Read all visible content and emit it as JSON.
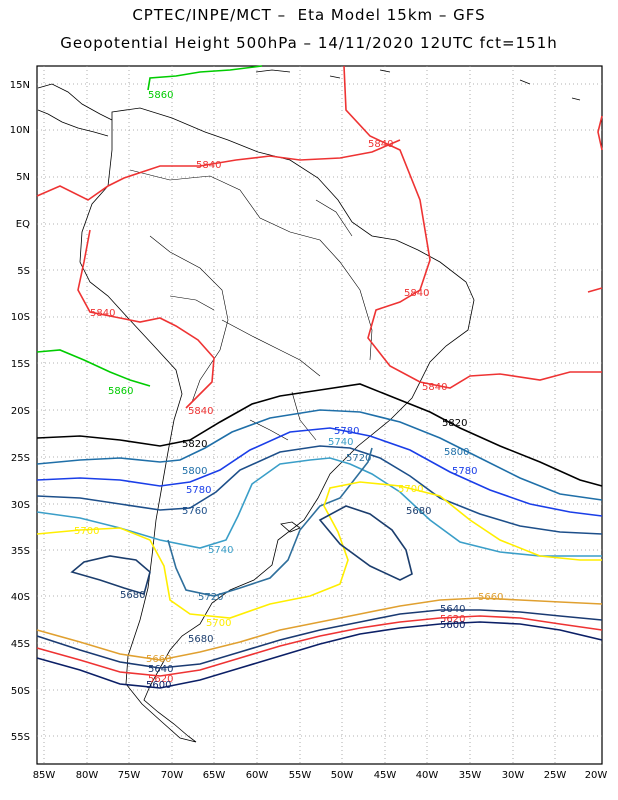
{
  "header": {
    "title_line1": "CPTEC/INPE/MCT –  Eta Model 15km – GFS",
    "title_line2": "Geopotential Height 500hPa – 14/11/2020 12UTC fct=151h"
  },
  "axes": {
    "lat_labels": [
      "15N",
      "10N",
      "5N",
      "EQ",
      "5S",
      "10S",
      "15S",
      "20S",
      "25S",
      "30S",
      "35S",
      "40S",
      "45S",
      "50S",
      "55S"
    ],
    "lon_labels": [
      "85W",
      "80W",
      "75W",
      "70W",
      "65W",
      "60W",
      "55W",
      "50W",
      "45W",
      "40W",
      "35W",
      "30W",
      "25W",
      "20W"
    ]
  },
  "contours": [
    {
      "value": "5860",
      "color": "#00cc00"
    },
    {
      "value": "5840",
      "color": "#ee3333"
    },
    {
      "value": "5820",
      "color": "#000000"
    },
    {
      "value": "5800",
      "color": "#1f6fa8"
    },
    {
      "value": "5780",
      "color": "#1a3ee8"
    },
    {
      "value": "5760",
      "color": "#1d4f8a"
    },
    {
      "value": "5740",
      "color": "#3a9ec8"
    },
    {
      "value": "5720",
      "color": "#2f6f9c"
    },
    {
      "value": "5700",
      "color": "#ffee00"
    },
    {
      "value": "5680",
      "color": "#1b3d6d"
    },
    {
      "value": "5660",
      "color": "#e0a030"
    },
    {
      "value": "5640",
      "color": "#1a3a72"
    },
    {
      "value": "5620",
      "color": "#ee3333"
    },
    {
      "value": "5600",
      "color": "#0b1f66"
    }
  ]
}
